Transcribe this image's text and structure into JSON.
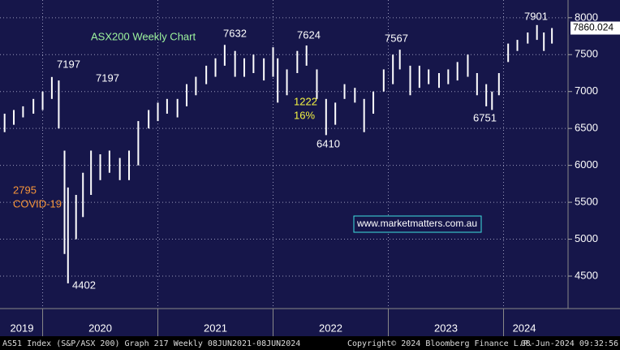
{
  "chart_data": {
    "type": "range-bar",
    "title": "ASX200 Weekly Chart",
    "x": [
      2019.67,
      2019.75,
      2019.83,
      2019.92,
      2020.0,
      2020.08,
      2020.14,
      2020.19,
      2020.22,
      2020.29,
      2020.35,
      2020.42,
      2020.5,
      2020.58,
      2020.67,
      2020.75,
      2020.83,
      2020.92,
      2021.0,
      2021.08,
      2021.17,
      2021.25,
      2021.33,
      2021.42,
      2021.5,
      2021.58,
      2021.67,
      2021.75,
      2021.83,
      2021.92,
      2022.0,
      2022.04,
      2022.12,
      2022.21,
      2022.29,
      2022.38,
      2022.46,
      2022.54,
      2022.62,
      2022.71,
      2022.79,
      2022.87,
      2022.96,
      2023.04,
      2023.1,
      2023.19,
      2023.27,
      2023.35,
      2023.44,
      2023.52,
      2023.6,
      2023.69,
      2023.77,
      2023.85,
      2023.9,
      2023.96,
      2024.04,
      2024.12,
      2024.21,
      2024.29,
      2024.35,
      2024.42
    ],
    "low": [
      6450,
      6550,
      6650,
      6700,
      6750,
      6900,
      6500,
      4800,
      4402,
      5000,
      5300,
      5600,
      5800,
      5900,
      5800,
      5800,
      6000,
      6500,
      6600,
      6700,
      6650,
      6800,
      6950,
      7100,
      7200,
      7350,
      7200,
      7200,
      7250,
      7150,
      7200,
      6850,
      6950,
      7250,
      7350,
      6900,
      6410,
      6550,
      6900,
      6850,
      6450,
      6700,
      7000,
      7100,
      7300,
      6950,
      7050,
      7100,
      7050,
      7100,
      7150,
      7200,
      6950,
      6800,
      6751,
      6950,
      7400,
      7550,
      7650,
      7700,
      7550,
      7650
    ],
    "high": [
      6700,
      6750,
      6800,
      6900,
      7000,
      7197,
      7150,
      6200,
      5700,
      5600,
      5900,
      6200,
      6150,
      6200,
      6100,
      6200,
      6600,
      6750,
      6850,
      6900,
      6900,
      7100,
      7200,
      7350,
      7450,
      7632,
      7550,
      7450,
      7500,
      7450,
      7600,
      7450,
      7300,
      7550,
      7624,
      7300,
      6900,
      6850,
      7100,
      7050,
      6900,
      7000,
      7300,
      7500,
      7567,
      7350,
      7350,
      7300,
      7250,
      7300,
      7400,
      7500,
      7250,
      7100,
      7000,
      7250,
      7650,
      7700,
      7800,
      7901,
      7800,
      7860
    ],
    "color": "#ffffff",
    "last_value": 7860.024,
    "xlim": [
      2019.63,
      2024.56
    ],
    "ylim": [
      4060,
      8240
    ],
    "yticks": [
      4500,
      5000,
      5500,
      6000,
      6500,
      7000,
      7500,
      8000
    ],
    "xticks": [
      {
        "value": 2019.82,
        "label": "2019"
      },
      {
        "value": 2020.5,
        "label": "2020"
      },
      {
        "value": 2021.5,
        "label": "2021"
      },
      {
        "value": 2022.5,
        "label": "2022"
      },
      {
        "value": 2023.5,
        "label": "2023"
      },
      {
        "value": 2024.18,
        "label": "2024"
      }
    ],
    "grid": true,
    "annotations": [
      "7197",
      "7197",
      "7632",
      "7624",
      "7567",
      "7901",
      "1222",
      "16%",
      "6410",
      "6751",
      "4402",
      "2795",
      "COVID-19",
      "www.marketmatters.com.au"
    ]
  },
  "footer": {
    "left": "AS51 Index (S&P/ASX 200) Graph 217 Weekly 08JUN2021-08JUN2024",
    "center": "Copyright© 2024 Bloomberg Finance L.P.",
    "right": "08-Jun-2024 09:32:56"
  }
}
